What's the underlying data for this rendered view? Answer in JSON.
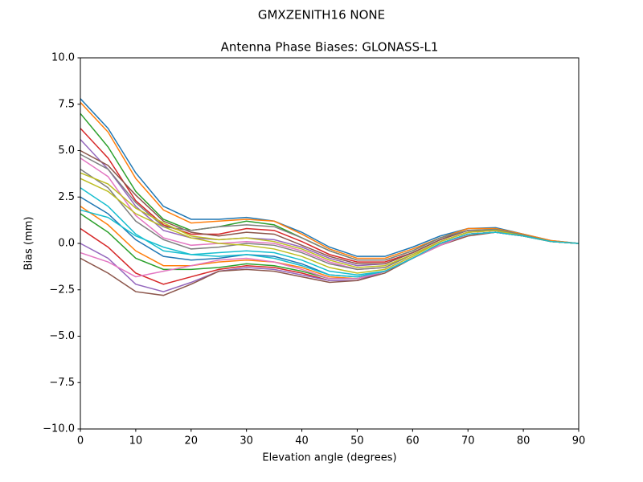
{
  "chart_data": {
    "type": "line",
    "suptitle": "GMXZENITH16     NONE",
    "title": "Antenna Phase Biases: GLONASS-L1",
    "xlabel": "Elevation angle (degrees)",
    "ylabel": "Bias (mm)",
    "x": [
      0,
      5,
      10,
      15,
      20,
      25,
      30,
      35,
      40,
      45,
      50,
      55,
      60,
      65,
      70,
      75,
      80,
      85,
      90
    ],
    "xlim": [
      0,
      90
    ],
    "xticks": [
      0,
      10,
      20,
      30,
      40,
      50,
      60,
      70,
      80,
      90
    ],
    "ylim": [
      -10,
      10
    ],
    "yticks": [
      {
        "value": -10,
        "label": "−10.0"
      },
      {
        "value": -7.5,
        "label": "−7.5"
      },
      {
        "value": -5,
        "label": "−5.0"
      },
      {
        "value": -2.5,
        "label": "−2.5"
      },
      {
        "value": 0,
        "label": "0.0"
      },
      {
        "value": 2.5,
        "label": "2.5"
      },
      {
        "value": 5,
        "label": "5.0"
      },
      {
        "value": 7.5,
        "label": "7.5"
      },
      {
        "value": 10,
        "label": "10.0"
      }
    ],
    "grid": false,
    "series": [
      {
        "color": "#1f77b4",
        "values": [
          7.8,
          6.2,
          3.8,
          2.0,
          1.3,
          1.3,
          1.4,
          1.2,
          0.6,
          -0.2,
          -0.7,
          -0.7,
          -0.2,
          0.4,
          0.8,
          0.85,
          0.5,
          0.15,
          0
        ]
      },
      {
        "color": "#ff7f0e",
        "values": [
          7.6,
          6.0,
          3.5,
          1.8,
          1.1,
          1.2,
          1.3,
          1.2,
          0.5,
          -0.3,
          -0.8,
          -0.8,
          -0.3,
          0.3,
          0.8,
          0.8,
          0.5,
          0.15,
          0
        ]
      },
      {
        "color": "#2ca02c",
        "values": [
          7.0,
          5.2,
          2.8,
          1.3,
          0.7,
          0.9,
          1.2,
          1.0,
          0.3,
          -0.4,
          -0.9,
          -0.9,
          -0.4,
          0.3,
          0.7,
          0.75,
          0.45,
          0.1,
          0
        ]
      },
      {
        "color": "#d62728",
        "values": [
          6.2,
          4.6,
          2.3,
          1.0,
          0.5,
          0.5,
          0.8,
          0.7,
          0.1,
          -0.6,
          -1.0,
          -1.0,
          -0.5,
          0.2,
          0.7,
          0.7,
          0.4,
          0.1,
          0
        ]
      },
      {
        "color": "#9467bd",
        "values": [
          5.6,
          4.0,
          2.0,
          0.7,
          0.3,
          0.2,
          0.3,
          0.2,
          -0.2,
          -0.8,
          -1.2,
          -1.1,
          -0.5,
          0.2,
          0.7,
          0.7,
          0.4,
          0.1,
          0
        ]
      },
      {
        "color": "#8c564b",
        "values": [
          5.0,
          4.2,
          2.6,
          1.2,
          0.6,
          0.4,
          0.6,
          0.5,
          -0.1,
          -0.7,
          -1.1,
          -1.1,
          -0.5,
          0.2,
          0.7,
          0.7,
          0.4,
          0.1,
          0
        ]
      },
      {
        "color": "#e377c2",
        "values": [
          4.6,
          3.6,
          1.5,
          0.3,
          -0.1,
          0.0,
          0.1,
          0.0,
          -0.4,
          -1.0,
          -1.4,
          -1.3,
          -0.6,
          0.1,
          0.6,
          0.7,
          0.4,
          0.1,
          0
        ]
      },
      {
        "color": "#7f7f7f",
        "values": [
          4.0,
          3.0,
          1.2,
          0.2,
          -0.3,
          -0.2,
          0.0,
          -0.1,
          -0.5,
          -1.1,
          -1.4,
          -1.3,
          -0.6,
          0.1,
          0.6,
          0.7,
          0.4,
          0.1,
          0
        ]
      },
      {
        "color": "#bcbd22",
        "values": [
          3.5,
          2.8,
          1.6,
          0.9,
          0.3,
          0.0,
          -0.1,
          -0.3,
          -0.7,
          -1.3,
          -1.6,
          -1.4,
          -0.7,
          0.1,
          0.6,
          0.7,
          0.4,
          0.1,
          0
        ]
      },
      {
        "color": "#17becf",
        "values": [
          3.0,
          2.0,
          0.5,
          -0.4,
          -0.6,
          -0.5,
          -0.4,
          -0.5,
          -0.9,
          -1.5,
          -1.7,
          -1.5,
          -0.8,
          0.0,
          0.5,
          0.6,
          0.4,
          0.1,
          0
        ]
      },
      {
        "color": "#1f77b4",
        "values": [
          2.5,
          1.6,
          0.2,
          -0.7,
          -0.9,
          -0.8,
          -0.6,
          -0.7,
          -1.1,
          -1.7,
          -1.8,
          -1.5,
          -0.8,
          0.0,
          0.5,
          0.6,
          0.4,
          0.1,
          0
        ]
      },
      {
        "color": "#ff7f0e",
        "values": [
          2.0,
          1.0,
          -0.4,
          -1.2,
          -1.2,
          -1.0,
          -0.9,
          -1.0,
          -1.3,
          -1.8,
          -1.9,
          -1.5,
          -0.8,
          0.0,
          0.5,
          0.6,
          0.4,
          0.1,
          0
        ]
      },
      {
        "color": "#2ca02c",
        "values": [
          1.6,
          0.6,
          -0.8,
          -1.4,
          -1.4,
          -1.3,
          -1.1,
          -1.2,
          -1.5,
          -1.9,
          -1.9,
          -1.5,
          -0.8,
          -0.1,
          0.5,
          0.6,
          0.4,
          0.1,
          0
        ]
      },
      {
        "color": "#d62728",
        "values": [
          0.8,
          -0.2,
          -1.6,
          -2.2,
          -1.8,
          -1.4,
          -1.2,
          -1.3,
          -1.6,
          -2.0,
          -2.0,
          -1.5,
          -0.8,
          -0.1,
          0.5,
          0.6,
          0.4,
          0.1,
          0
        ]
      },
      {
        "color": "#9467bd",
        "values": [
          0.0,
          -0.8,
          -2.2,
          -2.6,
          -2.1,
          -1.5,
          -1.3,
          -1.4,
          -1.7,
          -2.0,
          -2.0,
          -1.5,
          -0.8,
          -0.1,
          0.5,
          0.6,
          0.4,
          0.1,
          0
        ]
      },
      {
        "color": "#8c564b",
        "values": [
          -0.8,
          -1.6,
          -2.6,
          -2.8,
          -2.2,
          -1.5,
          -1.4,
          -1.5,
          -1.8,
          -2.1,
          -2.0,
          -1.6,
          -0.8,
          -0.1,
          0.4,
          0.6,
          0.4,
          0.1,
          0
        ]
      },
      {
        "color": "#e377c2",
        "values": [
          -0.5,
          -1.0,
          -1.8,
          -1.5,
          -1.2,
          -0.9,
          -0.8,
          -1.0,
          -1.4,
          -1.9,
          -1.9,
          -1.5,
          -0.8,
          -0.1,
          0.5,
          0.6,
          0.4,
          0.1,
          0
        ]
      },
      {
        "color": "#7f7f7f",
        "values": [
          4.8,
          4.0,
          2.2,
          0.9,
          0.7,
          0.9,
          1.0,
          0.9,
          0.3,
          -0.4,
          -0.9,
          -0.9,
          -0.4,
          0.3,
          0.7,
          0.75,
          0.45,
          0.1,
          0
        ]
      },
      {
        "color": "#bcbd22",
        "values": [
          3.8,
          3.2,
          1.9,
          1.1,
          0.4,
          0.2,
          0.3,
          0.1,
          -0.3,
          -0.9,
          -1.3,
          -1.2,
          -0.6,
          0.1,
          0.6,
          0.7,
          0.4,
          0.1,
          0
        ]
      },
      {
        "color": "#17becf",
        "values": [
          1.8,
          1.4,
          0.4,
          -0.2,
          -0.6,
          -0.7,
          -0.6,
          -0.8,
          -1.2,
          -1.7,
          -1.8,
          -1.5,
          -0.8,
          0.0,
          0.5,
          0.6,
          0.4,
          0.1,
          0
        ]
      }
    ]
  }
}
